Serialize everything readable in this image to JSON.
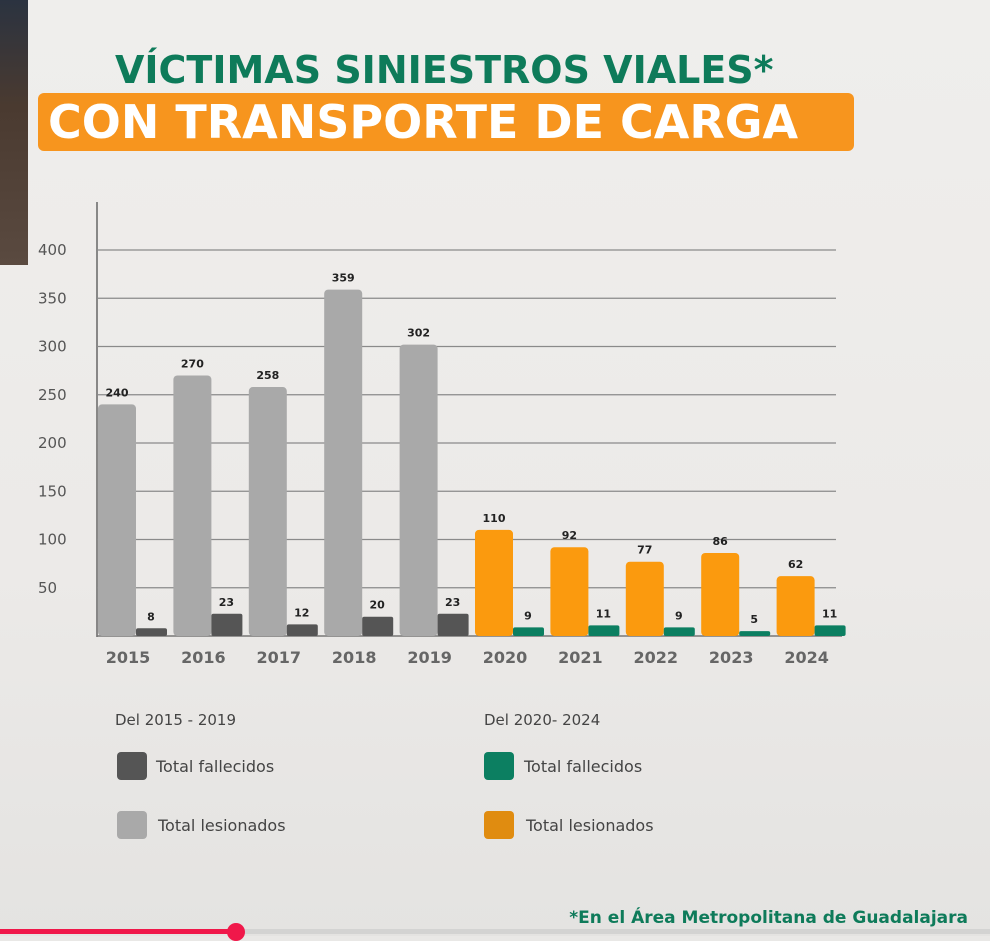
{
  "title_line1": "VÍCTIMAS SINIESTROS VIALES*",
  "title_line2": "CON TRANSPORTE DE CARGA",
  "footnote": "*En el Área Metropolitana de Guadalajara",
  "legend": {
    "group1_title": "Del 2015 - 2019",
    "group2_title": "Del 2020- 2024",
    "fallecidos": "Total fallecidos",
    "lesionados": "Total lesionados"
  },
  "colors": {
    "les_old": "#a9a9a9",
    "fal_old": "#555555",
    "les_new": "#fb9a0e",
    "fal_new": "#0c7f61"
  },
  "video_progress": 0.238,
  "chart_data": {
    "type": "bar",
    "title": "VÍCTIMAS SINIESTROS VIALES* CON TRANSPORTE DE CARGA",
    "categories": [
      "2015",
      "2016",
      "2017",
      "2018",
      "2019",
      "2020",
      "2021",
      "2022",
      "2023",
      "2024"
    ],
    "series": [
      {
        "name": "Total lesionados",
        "values": [
          240,
          270,
          258,
          359,
          302,
          110,
          92,
          77,
          86,
          62
        ]
      },
      {
        "name": "Total fallecidos",
        "values": [
          8,
          23,
          12,
          20,
          23,
          9,
          11,
          9,
          5,
          11
        ]
      }
    ],
    "yticks": [
      50,
      100,
      150,
      200,
      250,
      300,
      350,
      400
    ],
    "ylim": [
      0,
      400
    ],
    "grid": true,
    "legend_placement": "bottom"
  }
}
